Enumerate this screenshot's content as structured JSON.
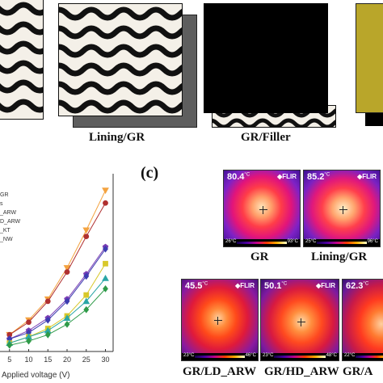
{
  "panel_a": {
    "captions": [
      "Lining/GR",
      "GR/Filler"
    ]
  },
  "panel_c": {
    "label": "(c)",
    "thermal_images": [
      {
        "label": "GR",
        "max_temp": "80.4",
        "unit": "°C",
        "brand": "FLIR",
        "scale_min": "26°C",
        "scale_max": "93°C"
      },
      {
        "label": "Lining/GR",
        "max_temp": "85.2",
        "unit": "°C",
        "brand": "FLIR",
        "scale_min": "25°C",
        "scale_max": "96°C"
      },
      {
        "label": "GR/LD_ARW",
        "max_temp": "45.5",
        "unit": "°C",
        "brand": "FLIR",
        "scale_min": "23°C",
        "scale_max": "46°C"
      },
      {
        "label": "GR/HD_ARW",
        "max_temp": "50.1",
        "unit": "°C",
        "brand": "FLIR",
        "scale_min": "23°C",
        "scale_max": "48°C"
      },
      {
        "label": "GR/A",
        "max_temp": "62.3",
        "unit": "°C",
        "brand": "",
        "scale_min": "22°C",
        "scale_max": ""
      }
    ]
  },
  "chart_data": {
    "type": "line",
    "xlabel": "Applied voltage (V)",
    "ylabel": "",
    "x": [
      5,
      10,
      15,
      20,
      25,
      30
    ],
    "xlim": [
      0,
      32
    ],
    "ylim": [
      20,
      105
    ],
    "legend_placement": "top-left",
    "legend_entries": [
      "GR",
      "s",
      "_ARW",
      "D_ARW",
      "_KT",
      "_NW"
    ],
    "series": [
      {
        "name": "GR",
        "color": "#f4a340",
        "marker": "triangle-down",
        "values": [
          28,
          35,
          45,
          60,
          78,
          97
        ]
      },
      {
        "name": "s",
        "color": "#b03030",
        "marker": "circle",
        "values": [
          28,
          34,
          44,
          58,
          75,
          91
        ]
      },
      {
        "name": "_ARW",
        "color": "#7b3fb5",
        "marker": "pentagon",
        "values": [
          26,
          30,
          36,
          45,
          57,
          70
        ]
      },
      {
        "name": "D_ARW",
        "color": "#3c3cb0",
        "marker": "diamond",
        "values": [
          26,
          29,
          35,
          44,
          56,
          69
        ]
      },
      {
        "name": "_KT",
        "color": "#d8c82a",
        "marker": "square",
        "values": [
          24,
          27,
          31,
          37,
          47,
          62
        ]
      },
      {
        "name": "_NW",
        "color": "#2aa6a6",
        "marker": "triangle-up",
        "values": [
          24,
          27,
          30,
          36,
          44,
          55
        ]
      },
      {
        "name": "",
        "color": "#2e9a48",
        "marker": "diamond",
        "values": [
          23,
          25,
          28,
          33,
          40,
          50
        ]
      }
    ]
  }
}
